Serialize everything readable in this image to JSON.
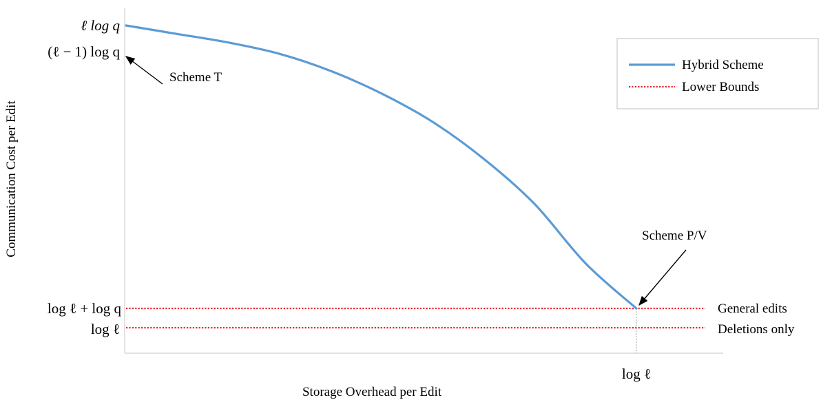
{
  "chart_data": {
    "type": "line",
    "title": "",
    "xlabel": "Storage Overhead per Edit",
    "ylabel": "Communication Cost per Edit",
    "x_ticks": [
      "log ℓ"
    ],
    "y_ticks": [
      "ℓ log q",
      "(ℓ − 1) log q",
      "log ℓ + log q",
      "log ℓ"
    ],
    "grid": false,
    "legend_position": "top-right",
    "legend": [
      {
        "label": "Hybrid Scheme",
        "style": "solid",
        "color": "#5b9bd5"
      },
      {
        "label": "Lower Bounds",
        "style": "dotted",
        "color": "#e8202a"
      }
    ],
    "series": [
      {
        "name": "Hybrid Scheme",
        "x": [
          0,
          0.1,
          0.2,
          0.3,
          0.4,
          0.5,
          0.6,
          0.7,
          0.8,
          0.9,
          1.0
        ],
        "values": [
          1.0,
          0.97,
          0.94,
          0.9,
          0.84,
          0.76,
          0.66,
          0.53,
          0.37,
          0.16,
          0.0
        ]
      },
      {
        "name": "Lower Bounds",
        "curves": [
          {
            "label": "General edits",
            "value": "log ℓ + log q"
          },
          {
            "label": "Deletions only",
            "value": "log ℓ"
          }
        ]
      }
    ],
    "annotations": [
      "Scheme T",
      "Scheme P/V"
    ]
  },
  "colors": {
    "curve": "#5b9bd5",
    "bound": "#e8202a",
    "axis": "#d9d9d9"
  }
}
